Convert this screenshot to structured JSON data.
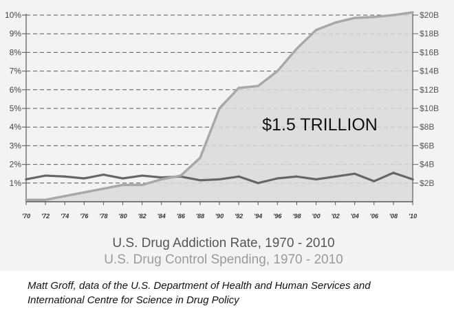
{
  "chart_data": {
    "type": "line",
    "title": "U.S. Drug Addiction Rate, 1970 - 2010",
    "subtitle": "U.S. Drug Control Spending, 1970 - 2010",
    "annotation": "$1.5 TRILLION",
    "x_tick_labels": [
      "'70",
      "'72",
      "'74",
      "'76",
      "'78",
      "'80",
      "'82",
      "'84",
      "'86",
      "'88",
      "'90",
      "'92",
      "'94",
      "'96",
      "'98",
      "'00",
      "'02",
      "'04",
      "'06",
      "'08",
      "'10"
    ],
    "x": [
      1970,
      1972,
      1974,
      1976,
      1978,
      1980,
      1982,
      1984,
      1986,
      1988,
      1990,
      1992,
      1994,
      1996,
      1998,
      2000,
      2002,
      2004,
      2006,
      2008,
      2010
    ],
    "y_left": {
      "ylim": [
        0,
        10
      ],
      "tick_values": [
        1,
        2,
        3,
        4,
        5,
        6,
        7,
        8,
        9,
        10
      ],
      "tick_labels": [
        "1%",
        "2%",
        "3%",
        "4%",
        "5%",
        "6%",
        "7%",
        "8%",
        "9%",
        "10%"
      ]
    },
    "y_right": {
      "ylim": [
        0,
        20
      ],
      "tick_values": [
        2,
        4,
        6,
        8,
        10,
        12,
        14,
        16,
        18,
        20
      ],
      "tick_labels": [
        "$2B",
        "$4B",
        "$6B",
        "$8B",
        "$10B",
        "$12B",
        "$14B",
        "$16B",
        "$18B",
        "$20B"
      ]
    },
    "series": [
      {
        "axis": "left",
        "color": "#666666",
        "values": [
          1.2,
          1.4,
          1.35,
          1.25,
          1.45,
          1.25,
          1.4,
          1.3,
          1.35,
          1.15,
          1.2,
          1.35,
          1.0,
          1.25,
          1.35,
          1.2,
          1.35,
          1.5,
          1.1,
          1.55,
          1.2
        ]
      },
      {
        "axis": "right",
        "color": "#a8a8a8",
        "fill": "#d9d9d9",
        "values": [
          0.2,
          0.2,
          0.6,
          1.0,
          1.4,
          1.8,
          1.8,
          2.4,
          2.8,
          4.7,
          10.0,
          12.2,
          12.4,
          14.0,
          16.4,
          18.4,
          19.2,
          19.7,
          19.8,
          20.0,
          20.4
        ]
      }
    ],
    "grid": true,
    "legend": "none"
  },
  "caption": {
    "line1": "Matt Groff, data of the U.S. Department of Health and Human Services and",
    "line2": "International Centre for Science in Drug Policy"
  }
}
